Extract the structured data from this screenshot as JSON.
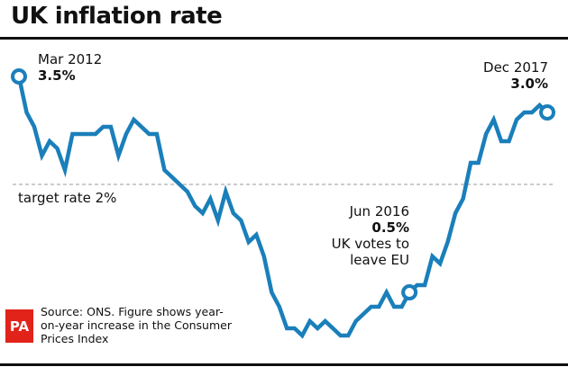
{
  "chart_data": {
    "type": "line",
    "title": "UK inflation rate",
    "x_start": "Mar 2012",
    "x_end": "Dec 2017",
    "frequency": "monthly",
    "values": [
      3.5,
      3.0,
      2.8,
      2.4,
      2.6,
      2.5,
      2.2,
      2.7,
      2.7,
      2.7,
      2.7,
      2.8,
      2.8,
      2.4,
      2.7,
      2.9,
      2.8,
      2.7,
      2.7,
      2.2,
      2.1,
      2.0,
      1.9,
      1.7,
      1.6,
      1.8,
      1.5,
      1.9,
      1.6,
      1.5,
      1.2,
      1.3,
      1.0,
      0.5,
      0.3,
      0.0,
      0.0,
      -0.1,
      0.1,
      0.0,
      0.1,
      0.0,
      -0.1,
      -0.1,
      0.1,
      0.2,
      0.3,
      0.3,
      0.5,
      0.3,
      0.3,
      0.5,
      0.6,
      0.6,
      1.0,
      0.9,
      1.2,
      1.6,
      1.8,
      2.3,
      2.3,
      2.7,
      2.9,
      2.6,
      2.6,
      2.9,
      3.0,
      3.0,
      3.1,
      3.0
    ],
    "reference_line": {
      "value": 2,
      "label": "target rate 2%"
    },
    "annotations": [
      {
        "date": "Mar 2012",
        "value_label": "3.5%",
        "index": 0
      },
      {
        "date": "Jun 2016",
        "value_label": "0.5%",
        "note": "UK votes to leave EU",
        "index": 51
      },
      {
        "date": "Dec 2017",
        "value_label": "3.0%",
        "index": 69
      }
    ],
    "grid": false,
    "line_color": "#1a7fba"
  },
  "source": "Source: ONS. Figure shows year-on-year increase in the Consumer Prices Index",
  "logo": "PA"
}
